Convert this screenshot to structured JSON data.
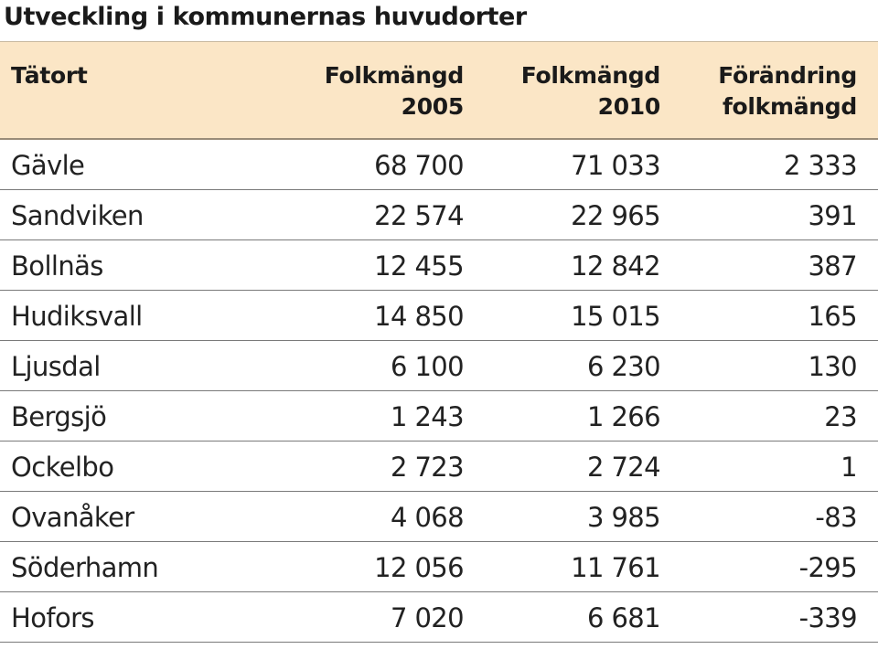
{
  "title": "Utveckling i kommunernas huvudorter",
  "headers": [
    [
      "Tätort",
      ""
    ],
    [
      "Folkmängd",
      "2005"
    ],
    [
      "Folkmängd",
      "2010"
    ],
    [
      "Förändring",
      "folkmängd"
    ]
  ],
  "rows": [
    [
      "Gävle",
      "68 700",
      "71 033",
      "2 333"
    ],
    [
      "Sandviken",
      "22 574",
      "22 965",
      "391"
    ],
    [
      "Bollnäs",
      "12 455",
      "12 842",
      "387"
    ],
    [
      "Hudiksvall",
      "14 850",
      "15 015",
      "165"
    ],
    [
      "Ljusdal",
      "6 100",
      "6 230",
      "130"
    ],
    [
      "Bergsjö",
      "1 243",
      "1 266",
      "23"
    ],
    [
      "Ockelbo",
      "2 723",
      "2 724",
      "1"
    ],
    [
      "Ovanåker",
      "4 068",
      "3 985",
      "-83"
    ],
    [
      "Söderhamn",
      "12 056",
      "11 761",
      "-295"
    ],
    [
      "Hofors",
      "7 020",
      "6 681",
      "-339"
    ]
  ],
  "colors": {
    "header_background": "#fbe6c6",
    "row_divider": "#7a7a7a"
  }
}
